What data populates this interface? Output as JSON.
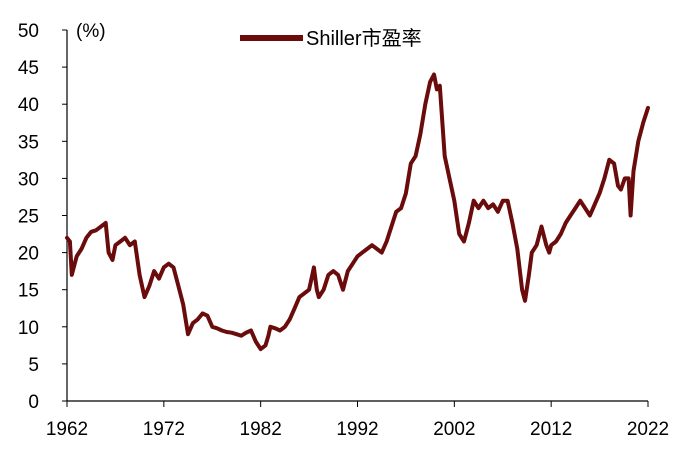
{
  "chart_data": {
    "type": "line",
    "title": "",
    "xlabel": "",
    "ylabel": "(%)",
    "legend": {
      "position": "top-center",
      "entries": [
        "Shiller市盈率"
      ]
    },
    "xlim": [
      1962,
      2022
    ],
    "ylim": [
      0,
      50
    ],
    "grid": false,
    "x_ticks": [
      "1962",
      "1972",
      "1982",
      "1992",
      "2002",
      "2012",
      "2022"
    ],
    "y_ticks": [
      "0",
      "5",
      "10",
      "15",
      "20",
      "25",
      "30",
      "35",
      "40",
      "45",
      "50"
    ],
    "series": [
      {
        "name": "Shiller市盈率",
        "color": "#6b0c0c",
        "x": [
          1962.0,
          1962.3,
          1962.5,
          1962.8,
          1963.0,
          1963.5,
          1964.0,
          1964.5,
          1965.0,
          1965.5,
          1966.0,
          1966.3,
          1966.7,
          1967.0,
          1967.5,
          1968.0,
          1968.5,
          1969.0,
          1969.5,
          1970.0,
          1970.5,
          1971.0,
          1971.5,
          1972.0,
          1972.5,
          1973.0,
          1973.5,
          1974.0,
          1974.5,
          1975.0,
          1975.5,
          1976.0,
          1976.5,
          1977.0,
          1977.5,
          1978.0,
          1978.5,
          1979.0,
          1979.5,
          1980.0,
          1980.5,
          1981.0,
          1981.5,
          1982.0,
          1982.5,
          1982.8,
          1983.0,
          1983.5,
          1984.0,
          1984.5,
          1985.0,
          1985.5,
          1986.0,
          1986.5,
          1987.0,
          1987.5,
          1987.8,
          1988.0,
          1988.5,
          1989.0,
          1989.5,
          1990.0,
          1990.5,
          1991.0,
          1991.5,
          1992.0,
          1992.5,
          1993.0,
          1993.5,
          1994.0,
          1994.5,
          1995.0,
          1995.5,
          1996.0,
          1996.5,
          1997.0,
          1997.5,
          1998.0,
          1998.5,
          1999.0,
          1999.5,
          1999.9,
          2000.2,
          2000.5,
          2001.0,
          2001.5,
          2002.0,
          2002.5,
          2003.0,
          2003.5,
          2004.0,
          2004.5,
          2005.0,
          2005.5,
          2006.0,
          2006.5,
          2007.0,
          2007.5,
          2008.0,
          2008.5,
          2009.0,
          2009.3,
          2009.7,
          2010.0,
          2010.5,
          2011.0,
          2011.5,
          2011.8,
          2012.0,
          2012.5,
          2013.0,
          2013.5,
          2014.0,
          2014.5,
          2015.0,
          2015.5,
          2016.0,
          2016.5,
          2017.0,
          2017.5,
          2018.0,
          2018.5,
          2018.9,
          2019.2,
          2019.6,
          2020.0,
          2020.2,
          2020.5,
          2021.0,
          2021.5,
          2022.0
        ],
        "values": [
          22.0,
          21.5,
          17.0,
          18.5,
          19.5,
          20.5,
          22.0,
          22.8,
          23.0,
          23.5,
          24.0,
          20.0,
          19.0,
          21.0,
          21.5,
          22.0,
          21.0,
          21.5,
          17.0,
          14.0,
          15.5,
          17.5,
          16.5,
          18.0,
          18.5,
          18.0,
          15.5,
          13.0,
          9.0,
          10.5,
          11.0,
          11.8,
          11.5,
          10.0,
          9.8,
          9.5,
          9.3,
          9.2,
          9.0,
          8.8,
          9.2,
          9.5,
          8.0,
          7.0,
          7.5,
          8.8,
          10.0,
          9.8,
          9.5,
          10.0,
          11.0,
          12.5,
          14.0,
          14.5,
          15.0,
          18.0,
          15.0,
          14.0,
          15.0,
          17.0,
          17.5,
          17.0,
          15.0,
          17.5,
          18.5,
          19.5,
          20.0,
          20.5,
          21.0,
          20.5,
          20.0,
          21.5,
          23.5,
          25.5,
          26.0,
          28.0,
          32.0,
          33.0,
          36.0,
          40.0,
          43.0,
          44.0,
          42.0,
          42.5,
          33.0,
          30.0,
          27.0,
          22.5,
          21.5,
          24.0,
          27.0,
          26.0,
          27.0,
          26.0,
          26.5,
          25.5,
          27.0,
          27.0,
          24.0,
          20.5,
          15.0,
          13.5,
          17.0,
          20.0,
          21.0,
          23.5,
          21.0,
          20.0,
          21.0,
          21.5,
          22.5,
          24.0,
          25.0,
          26.0,
          27.0,
          26.0,
          25.0,
          26.5,
          28.0,
          30.0,
          32.5,
          32.0,
          29.0,
          28.5,
          30.0,
          30.0,
          25.0,
          31.0,
          35.0,
          37.5,
          39.5
        ]
      }
    ]
  }
}
